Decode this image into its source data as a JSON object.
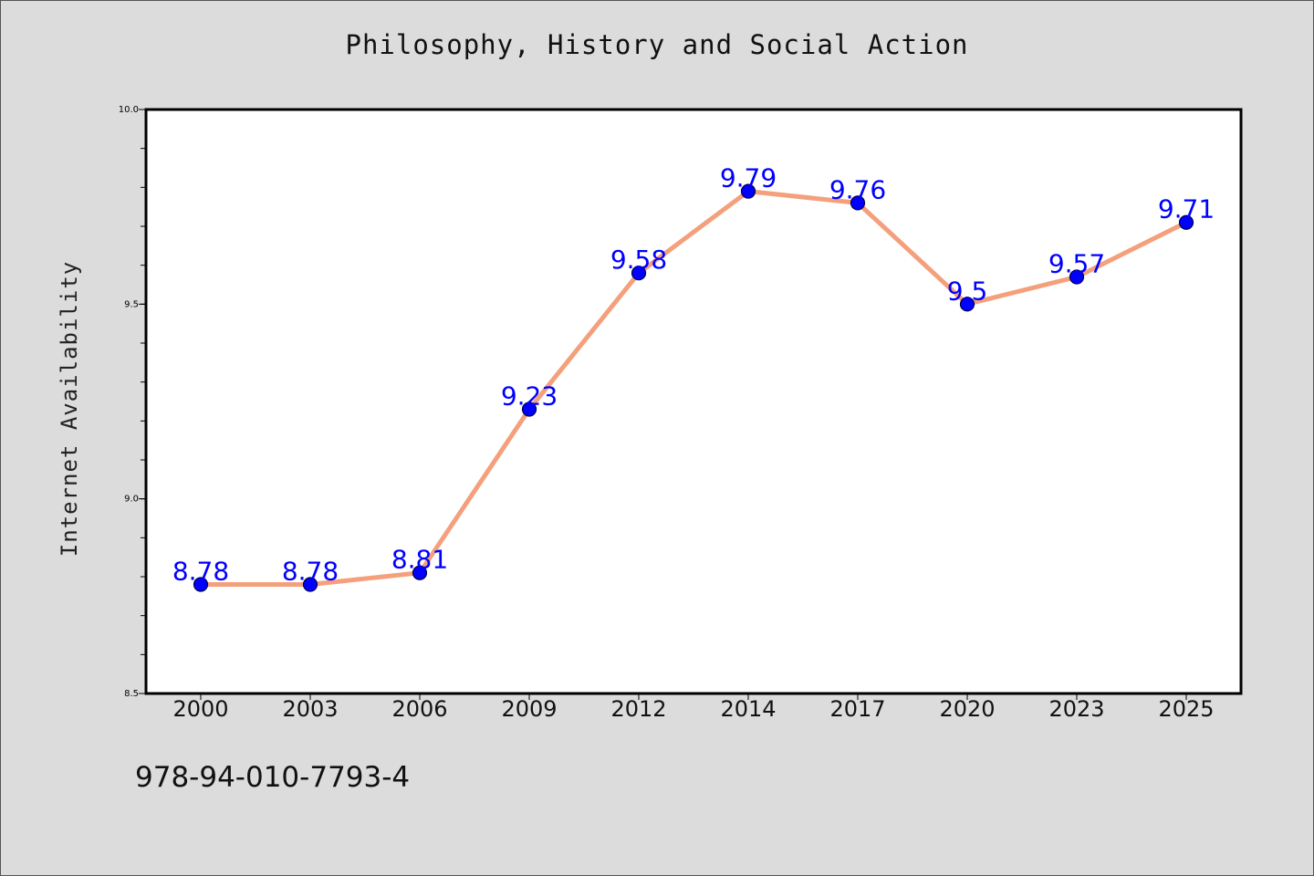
{
  "chart_data": {
    "type": "line",
    "title": "Philosophy, History and Social Action",
    "xlabel": "",
    "ylabel": "Internet Availability",
    "categories": [
      "2000",
      "2003",
      "2006",
      "2009",
      "2012",
      "2014",
      "2017",
      "2020",
      "2023",
      "2025"
    ],
    "values": [
      8.78,
      8.78,
      8.81,
      9.23,
      9.58,
      9.79,
      9.76,
      9.5,
      9.57,
      9.71
    ],
    "data_labels": [
      "8.78",
      "8.78",
      "8.81",
      "9.23",
      "9.58",
      "9.79",
      "9.76",
      "9.5",
      "9.57",
      "9.71"
    ],
    "ylim": [
      8.5,
      10.0
    ],
    "y_ticks": [
      "8.5",
      "9.0",
      "9.5",
      "10.0"
    ],
    "y_tick_values": [
      8.5,
      9.0,
      9.5,
      10.0
    ],
    "y_minor_step": 0.1,
    "grid": false,
    "legend": "none",
    "colors": {
      "line": "#f4a07c",
      "marker": "#0000ff",
      "label": "#0000ff",
      "background": "#dcdcdc",
      "plot_background": "#ffffff"
    }
  },
  "footer": {
    "code": "978-94-010-7793-4"
  }
}
